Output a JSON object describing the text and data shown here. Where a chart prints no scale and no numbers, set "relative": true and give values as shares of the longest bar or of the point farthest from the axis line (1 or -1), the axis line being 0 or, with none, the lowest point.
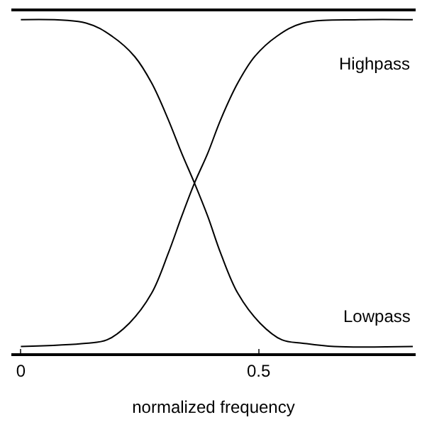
{
  "chart_data": {
    "type": "line",
    "relative": true,
    "xlabel": "normalized frequency",
    "xlim": [
      -0.02,
      0.83
    ],
    "xticks": [
      0,
      0.5
    ],
    "legend": false,
    "marker": "none",
    "line_style": "solid",
    "series": [
      {
        "name": "Highpass",
        "color": "#000000",
        "x": [
          0,
          0.137,
          0.181,
          0.228,
          0.275,
          0.31,
          0.338,
          0.365,
          0.393,
          0.42,
          0.456,
          0.492,
          0.538,
          0.593,
          0.714,
          0.824
        ],
        "values": [
          0.02,
          0.03,
          0.04,
          0.09,
          0.18,
          0.3,
          0.41,
          0.51,
          0.6,
          0.7,
          0.81,
          0.89,
          0.95,
          0.99,
          1.0,
          1.0
        ]
      },
      {
        "name": "Lowpass",
        "color": "#000000",
        "x": [
          0,
          0.137,
          0.192,
          0.239,
          0.275,
          0.31,
          0.338,
          0.365,
          0.393,
          0.42,
          0.456,
          0.503,
          0.549,
          0.593,
          0.659,
          0.824
        ],
        "values": [
          1.0,
          0.99,
          0.95,
          0.89,
          0.81,
          0.7,
          0.6,
          0.51,
          0.41,
          0.3,
          0.18,
          0.09,
          0.04,
          0.03,
          0.02,
          0.02
        ]
      }
    ]
  }
}
